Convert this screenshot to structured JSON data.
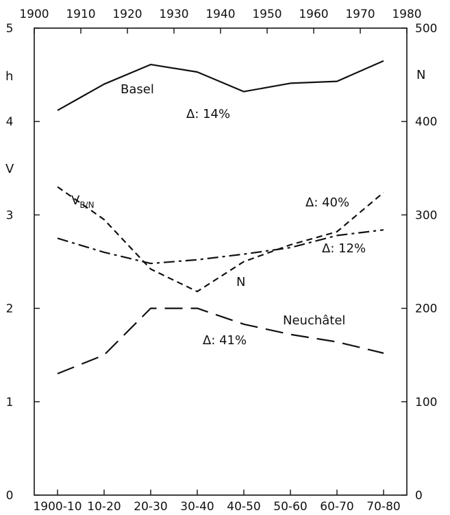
{
  "chart_data": {
    "type": "line",
    "title": "",
    "top_axis": {
      "ticks": [
        1900,
        1910,
        1920,
        1930,
        1940,
        1950,
        1960,
        1970,
        1980
      ],
      "range": [
        1900,
        1980
      ]
    },
    "bottom_axis": {
      "ticks": [
        "1900-10",
        "10-20",
        "20-30",
        "30-40",
        "40-50",
        "50-60",
        "60-70",
        "70-80"
      ]
    },
    "left_axis": {
      "ticks": [
        0,
        1,
        2,
        3,
        4,
        5
      ],
      "range": [
        0,
        5
      ],
      "labels": [
        "h",
        "V"
      ]
    },
    "right_axis": {
      "ticks": [
        0,
        100,
        200,
        300,
        400,
        500
      ],
      "range": [
        0,
        500
      ],
      "label": "N"
    },
    "series": [
      {
        "name": "Basel",
        "axis": "left",
        "dash": "solid",
        "x": [
          1905,
          1915,
          1925,
          1935,
          1945,
          1955,
          1965,
          1975
        ],
        "values": [
          4.12,
          4.4,
          4.61,
          4.53,
          4.32,
          4.41,
          4.43,
          4.65
        ]
      },
      {
        "name": "V_B/N",
        "axis": "left",
        "dash": "short",
        "x": [
          1905,
          1915,
          1925,
          1935,
          1945,
          1955,
          1965,
          1975
        ],
        "values": [
          3.3,
          2.95,
          2.42,
          2.18,
          2.5,
          2.68,
          2.82,
          3.24
        ]
      },
      {
        "name": "N",
        "axis": "right",
        "dash": "dashdot",
        "x": [
          1905,
          1915,
          1925,
          1935,
          1945,
          1955,
          1965,
          1975
        ],
        "values": [
          275,
          260,
          248,
          252,
          258,
          265,
          278,
          284
        ]
      },
      {
        "name": "Neuchâtel",
        "axis": "left",
        "dash": "long",
        "x": [
          1905,
          1915,
          1925,
          1935,
          1945,
          1955,
          1965,
          1975
        ],
        "values": [
          1.3,
          1.5,
          2.0,
          2.0,
          1.83,
          1.72,
          1.64,
          1.52
        ]
      }
    ],
    "annotations": [
      {
        "id": "basel",
        "text": "Basel"
      },
      {
        "id": "d14",
        "text": "Δ: 14%"
      },
      {
        "id": "v-main",
        "text": "V",
        "sub": "B/N"
      },
      {
        "id": "d40",
        "text": "Δ: 40%"
      },
      {
        "id": "d12",
        "text": "Δ: 12%"
      },
      {
        "id": "n",
        "text": "N"
      },
      {
        "id": "neuchatel",
        "text": "Neuchâtel"
      },
      {
        "id": "d41",
        "text": "Δ: 41%"
      }
    ],
    "grid": false
  }
}
